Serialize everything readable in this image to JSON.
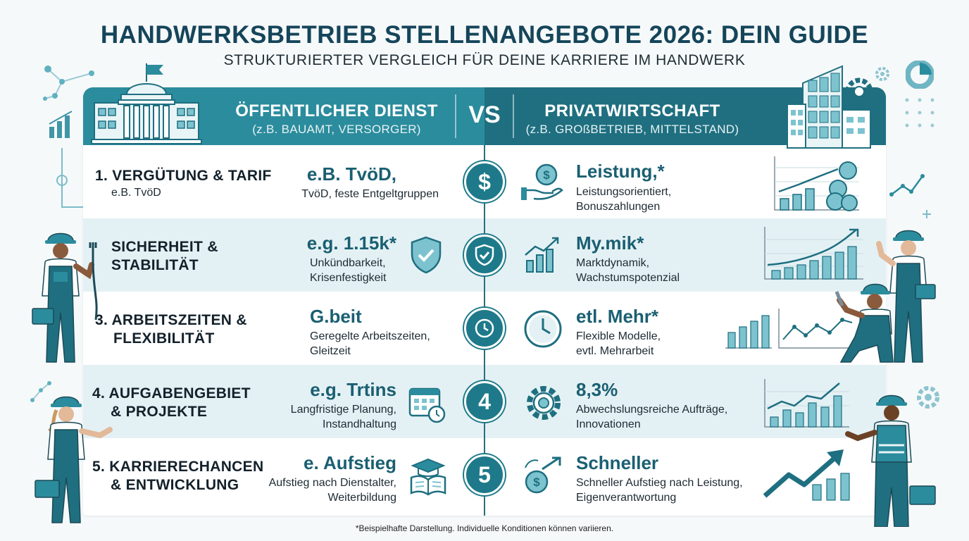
{
  "title": "HANDWERKSBETRIEB STELLENANGEBOTE 2026: DEIN GUIDE",
  "subtitle": "STRUKTURIERTER VERGLEICH FÜR DEINE KARRIERE IM HANDWERK",
  "header": {
    "left_title": "ÖFFENTLICHER DIENST",
    "left_sub": "(z.B. BAUAMT, VERSORGER)",
    "vs": "VS",
    "right_title": "PRIVATWIRTSCHAFT",
    "right_sub": "(z.B. GROßBETRIEB, MITTELSTAND)"
  },
  "rows": [
    {
      "category": "1. VERGÜTUNG & TARIF",
      "category_sub": "e.B. TvöD",
      "badge": "$",
      "left_big": "e.B. TvöD,",
      "left_small": [
        "TvöD, feste Entgeltgruppen"
      ],
      "right_big": "Leistung,*",
      "right_small": [
        "Leistungsorientiert,",
        "Bonuszahlungen"
      ]
    },
    {
      "category": "SICHERHEIT &\nSTABILITÄT",
      "category_sub": "",
      "badge": "",
      "left_big": "e.g. 1.15k*",
      "left_small": [
        "Unkündbarkeit,",
        "Krisenfestigkeit"
      ],
      "right_big": "My.mik*",
      "right_small": [
        "Marktdynamik,",
        "Wachstumspotenzial"
      ]
    },
    {
      "category": "3. ARBEITSZEITEN &\n    FLEXIBILITÄT",
      "category_sub": "",
      "badge": "",
      "left_big": "G.beit",
      "left_small": [
        "Geregelte Arbeitszeiten,",
        "Gleitzeit"
      ],
      "right_big": "etl. Mehr*",
      "right_small": [
        "Flexible Modelle,",
        "evtl. Mehrarbeit"
      ]
    },
    {
      "category": "4. AUFGABENGEBIET\n    & PROJEKTE",
      "category_sub": "",
      "badge": "4",
      "left_big": "e.g. Trtins",
      "left_small": [
        "Langfristige Planung,",
        "Instandhaltung"
      ],
      "right_big": "8,3%",
      "right_small": [
        "Abwechslungsreiche Aufträge,",
        "Innovationen"
      ]
    },
    {
      "category": "5. KARRIERECHANCEN\n    & ENTWICKLUNG",
      "category_sub": "",
      "badge": "5",
      "left_big": "e. Aufstieg",
      "left_small": [
        "Aufstieg nach Dienstalter,",
        "Weiterbildung"
      ],
      "right_big": "Schneller",
      "right_small": [
        "Schneller Aufstieg nach Leistung,",
        "Eigenverantwortung"
      ]
    }
  ],
  "footnote": "*Beispielhafte Darstellung. Individuelle Konditionen können variieren.",
  "colors": {
    "teal": "#2b8c9d",
    "dark_teal": "#1f6f80",
    "navy": "#15455a",
    "row_alt": "#e4f1f4"
  }
}
